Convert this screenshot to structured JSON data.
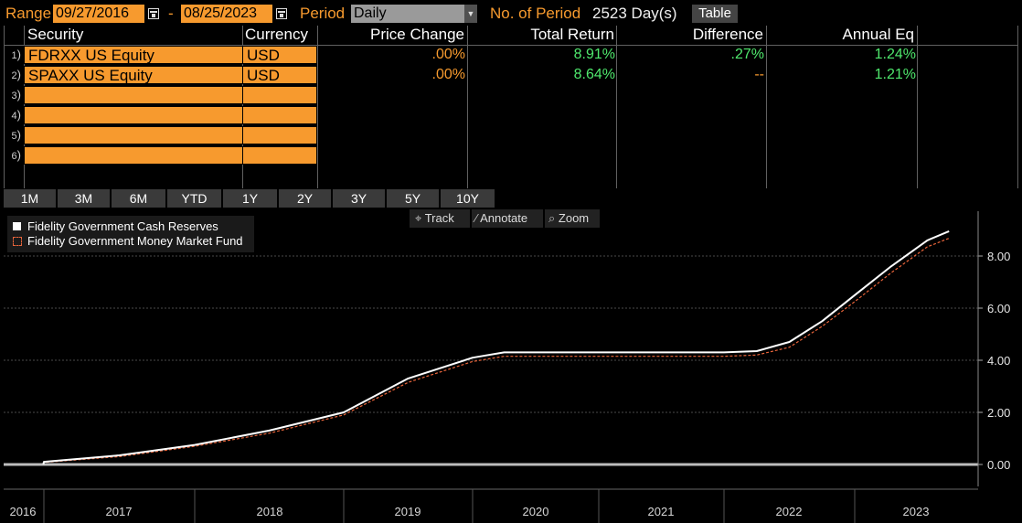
{
  "top": {
    "range_label": "Range",
    "start_date": "09/27/2016",
    "dash": "-",
    "end_date": "08/25/2023",
    "period_label": "Period",
    "period_value": "Daily",
    "num_periods_label": "No. of Period",
    "num_periods_value": "2523 Day(s)",
    "table_button": "Table"
  },
  "columns": [
    "Security",
    "Currency",
    "Price Change",
    "Total Return",
    "Difference",
    "Annual Eq"
  ],
  "rows": [
    {
      "num": "1",
      "security": "FDRXX US Equity",
      "currency": "USD",
      "price_change": ".00%",
      "total_return": "8.91%",
      "difference": ".27%",
      "annual_eq": "1.24%"
    },
    {
      "num": "2",
      "security": "SPAXX US Equity",
      "currency": "USD",
      "price_change": ".00%",
      "total_return": "8.64%",
      "difference": "--",
      "annual_eq": "1.21%"
    },
    {
      "num": "3",
      "security": "",
      "currency": ""
    },
    {
      "num": "4",
      "security": "",
      "currency": ""
    },
    {
      "num": "5",
      "security": "",
      "currency": ""
    },
    {
      "num": "6",
      "security": "",
      "currency": ""
    }
  ],
  "range_buttons": [
    "1M",
    "3M",
    "6M",
    "YTD",
    "1Y",
    "2Y",
    "3Y",
    "5Y",
    "10Y"
  ],
  "tools": {
    "track": "Track",
    "annotate": "Annotate",
    "zoom": "Zoom"
  },
  "chart_data": {
    "type": "line",
    "legend": [
      {
        "name": "Fidelity Government Cash Reserves",
        "color": "#ffffff",
        "style": "solid"
      },
      {
        "name": "Fidelity Government Money Market Fund",
        "color": "#e8643a",
        "style": "dashed"
      }
    ],
    "y_ticks": [
      "0.00",
      "2.00",
      "4.00",
      "6.00",
      "8.00"
    ],
    "ylim": [
      -0.4,
      9.6
    ],
    "x_labels": [
      "2016",
      "2017",
      "2018",
      "2019",
      "2020",
      "2021",
      "2022",
      "2023"
    ],
    "x": [
      2016.74,
      2017.0,
      2017.5,
      2018.0,
      2018.5,
      2019.0,
      2019.5,
      2020.0,
      2020.25,
      2020.5,
      2021.0,
      2021.5,
      2022.0,
      2022.25,
      2022.5,
      2022.75,
      2023.0,
      2023.25,
      2023.5,
      2023.65
    ],
    "series": [
      {
        "name": "Fidelity Government Cash Reserves",
        "values": [
          0.0,
          0.1,
          0.35,
          0.75,
          1.3,
          2.0,
          3.3,
          4.1,
          4.3,
          4.3,
          4.3,
          4.3,
          4.3,
          4.35,
          4.7,
          5.5,
          6.5,
          7.6,
          8.6,
          8.95
        ]
      },
      {
        "name": "Fidelity Government Money Market Fund",
        "values": [
          0.0,
          0.08,
          0.3,
          0.7,
          1.2,
          1.9,
          3.15,
          3.95,
          4.15,
          4.15,
          4.15,
          4.15,
          4.15,
          4.2,
          4.5,
          5.3,
          6.25,
          7.35,
          8.35,
          8.68
        ]
      }
    ],
    "baseline_value": 0.0
  }
}
